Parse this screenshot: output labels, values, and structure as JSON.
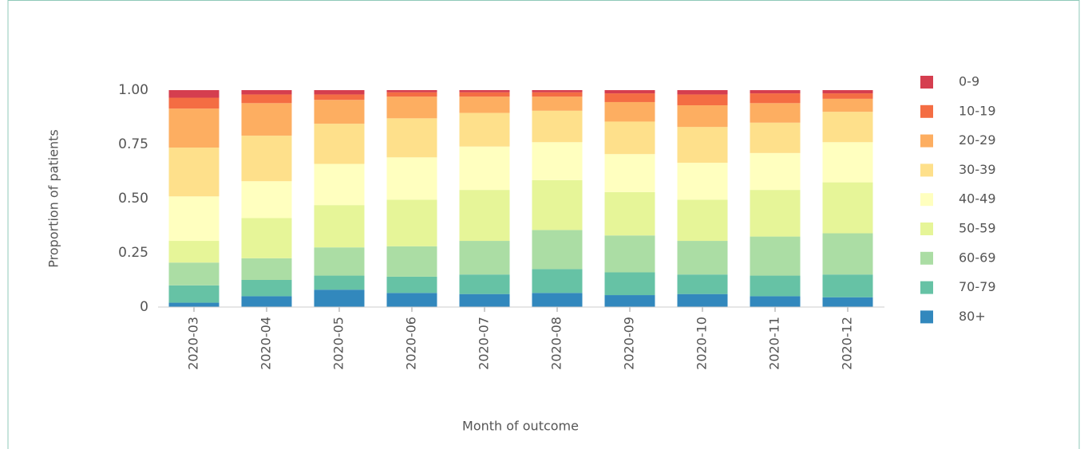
{
  "chart_data": {
    "type": "stacked_bar",
    "x_label": "Month of outcome",
    "y_label": "Proportion of patients",
    "categories": [
      "2020-03",
      "2020-04",
      "2020-05",
      "2020-06",
      "2020-07",
      "2020-08",
      "2020-09",
      "2020-10",
      "2020-11",
      "2020-12"
    ],
    "series": [
      {
        "name": "0-9",
        "color": "#d53e4f",
        "values": [
          0.035,
          0.02,
          0.02,
          0.01,
          0.01,
          0.01,
          0.015,
          0.02,
          0.015,
          0.015
        ]
      },
      {
        "name": "10-19",
        "color": "#f46d43",
        "values": [
          0.05,
          0.04,
          0.025,
          0.02,
          0.02,
          0.02,
          0.04,
          0.05,
          0.045,
          0.025
        ]
      },
      {
        "name": "20-29",
        "color": "#fdae61",
        "values": [
          0.18,
          0.15,
          0.11,
          0.1,
          0.075,
          0.065,
          0.09,
          0.1,
          0.09,
          0.06
        ]
      },
      {
        "name": "30-39",
        "color": "#fee08b",
        "values": [
          0.225,
          0.21,
          0.185,
          0.18,
          0.155,
          0.145,
          0.15,
          0.165,
          0.14,
          0.14
        ]
      },
      {
        "name": "40-49",
        "color": "#ffffbf",
        "values": [
          0.205,
          0.17,
          0.19,
          0.195,
          0.2,
          0.175,
          0.175,
          0.17,
          0.17,
          0.185
        ]
      },
      {
        "name": "50-59",
        "color": "#e6f598",
        "values": [
          0.1,
          0.185,
          0.195,
          0.215,
          0.235,
          0.23,
          0.2,
          0.19,
          0.215,
          0.235
        ]
      },
      {
        "name": "60-69",
        "color": "#abdda4",
        "values": [
          0.105,
          0.1,
          0.13,
          0.14,
          0.155,
          0.18,
          0.17,
          0.155,
          0.18,
          0.19
        ]
      },
      {
        "name": "70-79",
        "color": "#66c2a5",
        "values": [
          0.08,
          0.075,
          0.065,
          0.075,
          0.09,
          0.11,
          0.105,
          0.09,
          0.095,
          0.105
        ]
      },
      {
        "name": "80+",
        "color": "#3288bd",
        "values": [
          0.02,
          0.05,
          0.08,
          0.065,
          0.06,
          0.065,
          0.055,
          0.06,
          0.05,
          0.045
        ]
      }
    ],
    "ylim": [
      0,
      1
    ],
    "yticks": [
      0,
      0.25,
      {
        "value": 0.5,
        "label": "0.50"
      },
      0.75,
      {
        "value": 1,
        "label": "1.00"
      }
    ],
    "legend": "right",
    "grid": false
  }
}
